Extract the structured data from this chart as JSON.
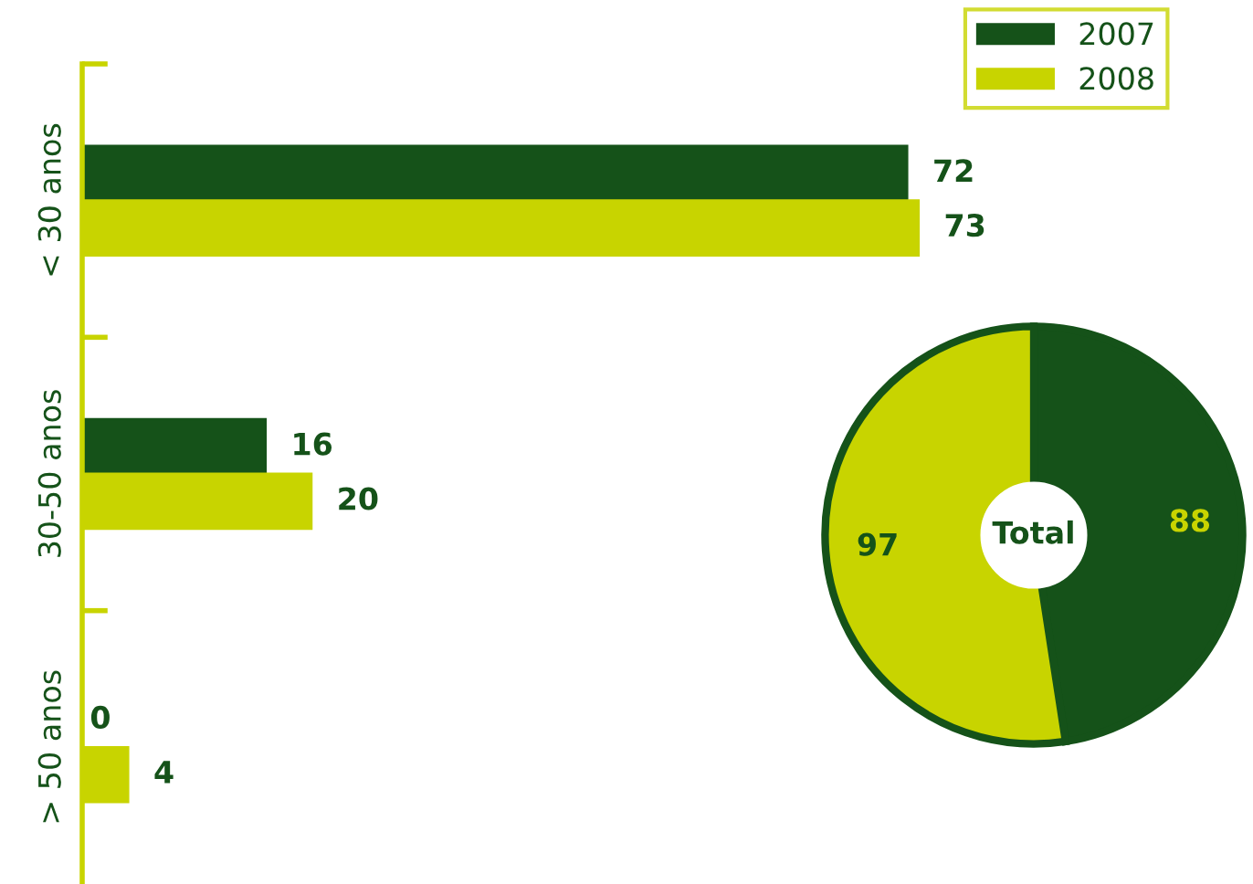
{
  "chart_data": [
    {
      "type": "bar",
      "orientation": "horizontal",
      "categories": [
        "< 30 anos",
        "30-50 anos",
        "> 50 anos"
      ],
      "series": [
        {
          "name": "2007",
          "color": "#155219",
          "values": [
            72,
            16,
            0
          ]
        },
        {
          "name": "2008",
          "color": "#c8d400",
          "values": [
            73,
            20,
            4
          ]
        }
      ],
      "data_labels": true,
      "legend": "top right",
      "grid": false
    },
    {
      "type": "donut",
      "categories": [
        null,
        null
      ],
      "values": [
        88,
        97
      ],
      "colors": [
        "#155219",
        "#c8d400"
      ],
      "data_labels": true,
      "annotations": [
        "Total"
      ]
    }
  ]
}
